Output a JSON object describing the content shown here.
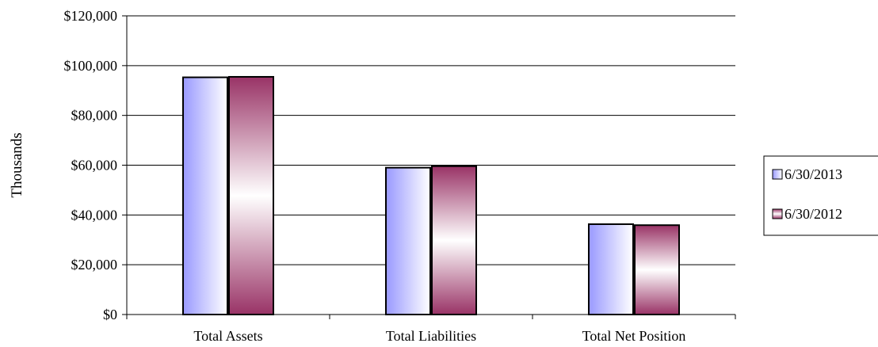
{
  "chart_data": {
    "type": "bar",
    "categories": [
      "Total Assets",
      "Total Liabilities",
      "Total Net Position"
    ],
    "series": [
      {
        "name": "6/30/2013",
        "values": [
          95300,
          59000,
          36300
        ]
      },
      {
        "name": "6/30/2012",
        "values": [
          95500,
          59600,
          35900
        ]
      }
    ],
    "title": "",
    "xlabel": "",
    "ylabel": "Thousands",
    "ylim": [
      0,
      120000
    ],
    "yticks": [
      0,
      20000,
      40000,
      60000,
      80000,
      100000,
      120000
    ],
    "ytick_labels": [
      "$0",
      "$20,000",
      "$40,000",
      "$60,000",
      "$80,000",
      "$100,000",
      "$120,000"
    ],
    "grid": true,
    "legend_position": "right",
    "colors": {
      "series_2013": "#9999ff",
      "series_2012": "#993366",
      "grid": "#000000"
    }
  }
}
